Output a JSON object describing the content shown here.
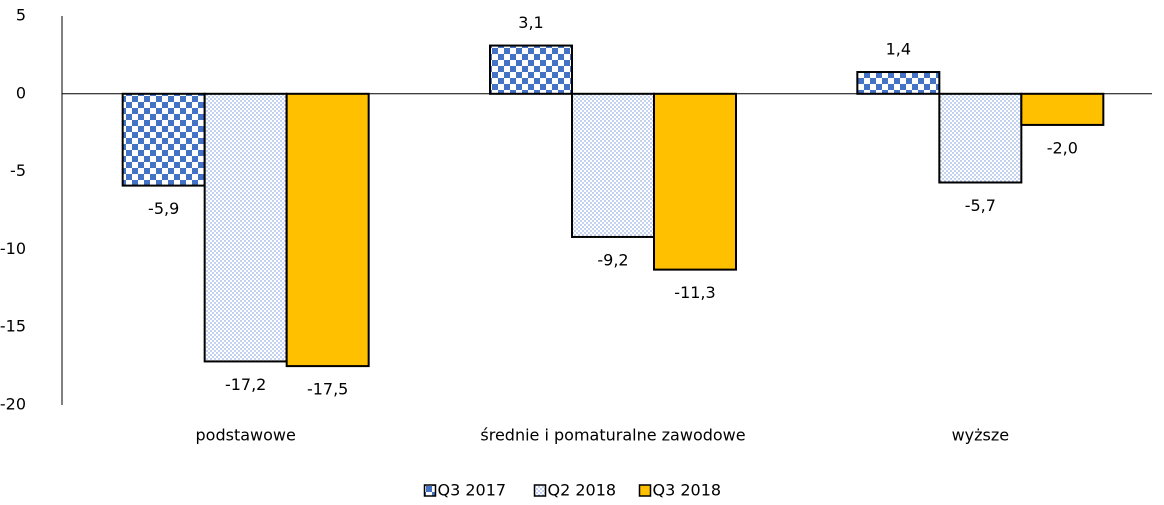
{
  "chart_data": {
    "type": "bar",
    "categories": [
      "podstawowe",
      "średnie i pomaturalne zawodowe",
      "wyższe"
    ],
    "series": [
      {
        "name": "Q3 2017",
        "color": "#4472c4",
        "pattern": "checker",
        "values": [
          -5.9,
          3.1,
          1.4
        ],
        "value_labels": [
          "-5,9",
          "3,1",
          "1,4"
        ]
      },
      {
        "name": "Q2 2018",
        "color": "#4472c4",
        "pattern": "dots",
        "values": [
          -17.2,
          -9.2,
          -5.7
        ],
        "value_labels": [
          "-17,2",
          "-9,2",
          "-5,7"
        ]
      },
      {
        "name": "Q3 2018",
        "color": "#ffc000",
        "pattern": "solid",
        "values": [
          -17.5,
          -11.3,
          -2.0
        ],
        "value_labels": [
          "-17,5",
          "-11,3",
          "-2,0"
        ]
      }
    ],
    "ylim": [
      -20,
      5
    ],
    "yticks": [
      -20,
      -15,
      -10,
      -5,
      0,
      5
    ],
    "legend": "bottom"
  }
}
